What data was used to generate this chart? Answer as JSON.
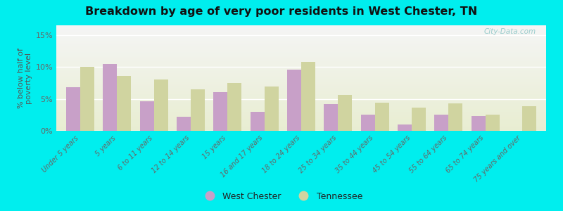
{
  "title": "Breakdown by age of very poor residents in West Chester, TN",
  "ylabel": "% below half of\npoverty level",
  "categories": [
    "Under 5 years",
    "5 years",
    "6 to 11 years",
    "12 to 14 years",
    "15 years",
    "16 and 17 years",
    "18 to 24 years",
    "25 to 34 years",
    "35 to 44 years",
    "45 to 54 years",
    "55 to 64 years",
    "65 to 74 years",
    "75 years and over"
  ],
  "west_chester": [
    6.8,
    10.5,
    4.6,
    2.2,
    6.0,
    3.0,
    9.6,
    4.2,
    2.5,
    1.0,
    2.5,
    2.3,
    null
  ],
  "tennessee": [
    10.0,
    8.6,
    8.0,
    6.5,
    7.5,
    6.9,
    10.8,
    5.6,
    4.4,
    3.6,
    4.3,
    2.5,
    3.8
  ],
  "west_chester_color": "#c8a0c8",
  "tennessee_color": "#d0d4a0",
  "bg_outer": "#00eeee",
  "yticks": [
    0,
    5,
    10,
    15
  ],
  "ytick_labels": [
    "0%",
    "5%",
    "10%",
    "15%"
  ],
  "ylim": [
    0,
    16.5
  ],
  "watermark": "City-Data.com"
}
